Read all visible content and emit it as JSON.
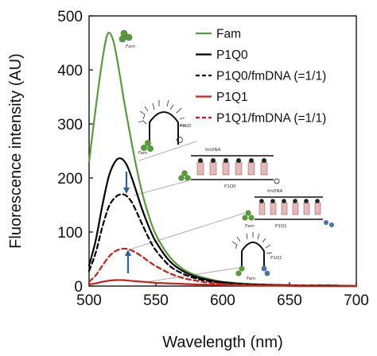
{
  "chart_data": {
    "type": "line",
    "title": "",
    "xlabel": "Wavelength (nm)",
    "ylabel": "Fluorescence intensity (AU)",
    "xlim": [
      500,
      700
    ],
    "ylim": [
      0,
      500
    ],
    "x_ticks": [
      "500",
      "550",
      "600",
      "650",
      "700"
    ],
    "y_ticks": [
      "0",
      "100",
      "200",
      "300",
      "400",
      "500"
    ],
    "grid": false,
    "legend_position": "top-right",
    "series": [
      {
        "name": "Fam",
        "color": "#5a9a3c",
        "dash": "solid",
        "x": [
          500,
          505,
          510,
          514,
          518,
          522,
          526,
          530,
          535,
          540,
          545,
          550,
          560,
          570,
          580,
          590,
          600,
          620,
          640,
          660,
          680,
          700
        ],
        "y": [
          230,
          330,
          420,
          467,
          455,
          405,
          345,
          290,
          225,
          170,
          128,
          95,
          55,
          32,
          20,
          13,
          8,
          4,
          2,
          1,
          1,
          0
        ]
      },
      {
        "name": "P1Q0",
        "color": "#000000",
        "dash": "solid",
        "x": [
          500,
          505,
          510,
          515,
          520,
          524,
          528,
          532,
          536,
          540,
          545,
          550,
          560,
          570,
          580,
          590,
          600,
          620,
          640,
          660,
          680,
          700
        ],
        "y": [
          38,
          85,
          150,
          205,
          232,
          236,
          225,
          200,
          170,
          140,
          108,
          82,
          47,
          28,
          17,
          11,
          7,
          3,
          2,
          1,
          1,
          0
        ]
      },
      {
        "name": "P1Q0/fmDNA (=1/1)",
        "color": "#000000",
        "dash": "dashed",
        "x": [
          500,
          505,
          510,
          515,
          520,
          524,
          528,
          532,
          536,
          540,
          545,
          550,
          560,
          570,
          580,
          590,
          600,
          620,
          640,
          660,
          680,
          700
        ],
        "y": [
          28,
          62,
          110,
          148,
          165,
          170,
          167,
          155,
          135,
          113,
          87,
          66,
          38,
          23,
          14,
          9,
          6,
          3,
          2,
          1,
          1,
          0
        ]
      },
      {
        "name": "P1Q1",
        "color": "#c8201a",
        "dash": "solid",
        "x": [
          500,
          505,
          510,
          515,
          520,
          525,
          530,
          535,
          540,
          545,
          550,
          560,
          570,
          580,
          600,
          620,
          640,
          660,
          680,
          700
        ],
        "y": [
          3,
          5,
          8,
          10,
          11,
          11,
          10,
          9,
          8,
          7,
          6,
          5,
          4,
          3,
          2,
          1,
          1,
          0,
          0,
          0
        ]
      },
      {
        "name": "P1Q1/fmDNA (=1/1)",
        "color": "#c8201a",
        "dash": "dashed",
        "x": [
          500,
          505,
          510,
          515,
          520,
          525,
          530,
          535,
          540,
          545,
          550,
          560,
          570,
          580,
          590,
          600,
          620,
          640,
          660,
          680,
          700
        ],
        "y": [
          8,
          20,
          38,
          55,
          65,
          69,
          68,
          62,
          54,
          45,
          37,
          24,
          15,
          10,
          6,
          4,
          2,
          1,
          1,
          0,
          0
        ]
      }
    ],
    "annotations": {
      "structure_labels": [
        "Fam",
        "P1Q0",
        "fmDNA",
        "P1Q0",
        "fmDNA",
        "Fam",
        "P1Q1",
        "P1Q1",
        "Fam"
      ]
    }
  },
  "colors": {
    "fam_green": "#5a9a3c",
    "quencher_red": "#c8201a",
    "arrow_blue": "#2e5f9e",
    "quencher_blue": "#4a6fb0",
    "dna_pink": "#e6b8b8"
  }
}
